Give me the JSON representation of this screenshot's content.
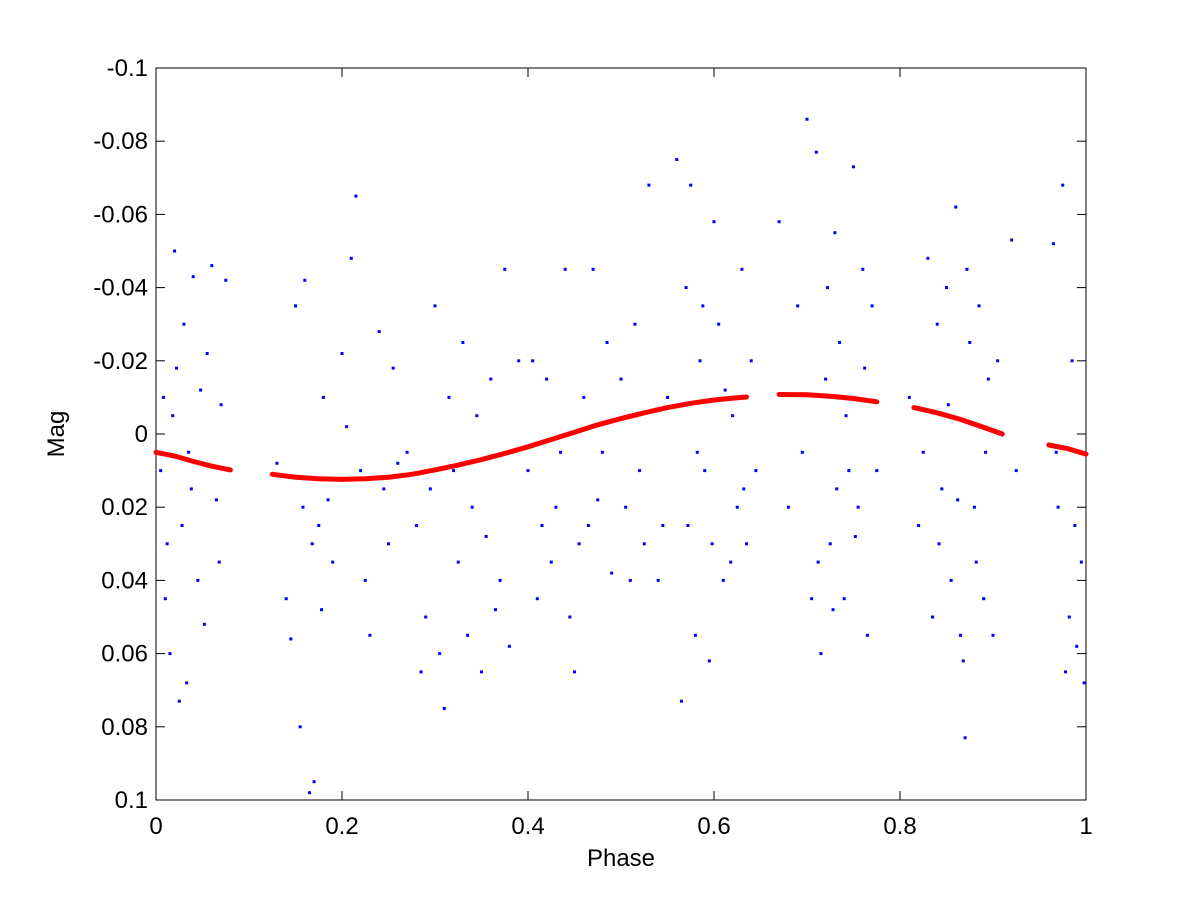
{
  "chart_data": {
    "type": "scatter",
    "title": "",
    "xlabel": "Phase",
    "ylabel": "Mag",
    "xlim": [
      0,
      1
    ],
    "ylim": [
      -0.1,
      0.1
    ],
    "y_reversed": true,
    "grid": false,
    "legend": "none",
    "x_ticks": [
      0,
      0.2,
      0.4,
      0.6,
      0.8,
      1
    ],
    "x_tick_labels": [
      "0",
      "0.2",
      "0.4",
      "0.6",
      "0.8",
      "1"
    ],
    "y_ticks": [
      -0.1,
      -0.08,
      -0.06,
      -0.04,
      -0.02,
      0,
      0.02,
      0.04,
      0.06,
      0.08,
      0.1
    ],
    "y_tick_labels": [
      "-0.1",
      "-0.08",
      "-0.06",
      "-0.04",
      "-0.02",
      "0",
      "0.02",
      "0.04",
      "0.06",
      "0.08",
      "0.1"
    ],
    "series": [
      {
        "kind": "points",
        "color": "#0000ff",
        "points": [
          [
            0.005,
            0.01
          ],
          [
            0.012,
            0.03
          ],
          [
            0.02,
            -0.05
          ],
          [
            0.025,
            0.073
          ],
          [
            0.03,
            -0.03
          ],
          [
            0.035,
            0.005
          ],
          [
            0.04,
            -0.043
          ],
          [
            0.045,
            0.04
          ],
          [
            0.055,
            -0.022
          ],
          [
            0.06,
            -0.046
          ],
          [
            0.065,
            0.018
          ],
          [
            0.07,
            -0.008
          ],
          [
            0.075,
            -0.042
          ],
          [
            0.008,
            -0.01
          ],
          [
            0.015,
            0.06
          ],
          [
            0.022,
            -0.018
          ],
          [
            0.028,
            0.025
          ],
          [
            0.033,
            0.068
          ],
          [
            0.048,
            -0.012
          ],
          [
            0.052,
            0.052
          ],
          [
            0.068,
            0.035
          ],
          [
            0.01,
            0.045
          ],
          [
            0.018,
            -0.005
          ],
          [
            0.038,
            0.015
          ],
          [
            0.13,
            0.008
          ],
          [
            0.14,
            0.045
          ],
          [
            0.145,
            0.056
          ],
          [
            0.15,
            -0.035
          ],
          [
            0.155,
            0.08
          ],
          [
            0.16,
            -0.042
          ],
          [
            0.165,
            0.098
          ],
          [
            0.17,
            0.095
          ],
          [
            0.175,
            0.025
          ],
          [
            0.18,
            -0.01
          ],
          [
            0.19,
            0.035
          ],
          [
            0.2,
            -0.022
          ],
          [
            0.21,
            -0.048
          ],
          [
            0.215,
            -0.065
          ],
          [
            0.22,
            0.01
          ],
          [
            0.23,
            0.055
          ],
          [
            0.24,
            -0.028
          ],
          [
            0.25,
            0.03
          ],
          [
            0.255,
            -0.018
          ],
          [
            0.26,
            0.008
          ],
          [
            0.152,
            0.012
          ],
          [
            0.168,
            0.03
          ],
          [
            0.185,
            0.018
          ],
          [
            0.205,
            -0.002
          ],
          [
            0.225,
            0.04
          ],
          [
            0.245,
            0.015
          ],
          [
            0.178,
            0.048
          ],
          [
            0.158,
            0.02
          ],
          [
            0.27,
            0.005
          ],
          [
            0.28,
            0.025
          ],
          [
            0.29,
            0.05
          ],
          [
            0.3,
            -0.035
          ],
          [
            0.305,
            0.06
          ],
          [
            0.31,
            0.075
          ],
          [
            0.32,
            0.01
          ],
          [
            0.33,
            -0.025
          ],
          [
            0.34,
            0.02
          ],
          [
            0.35,
            0.065
          ],
          [
            0.36,
            -0.015
          ],
          [
            0.37,
            0.04
          ],
          [
            0.375,
            -0.045
          ],
          [
            0.38,
            0.058
          ],
          [
            0.39,
            -0.02
          ],
          [
            0.285,
            0.065
          ],
          [
            0.295,
            0.015
          ],
          [
            0.315,
            -0.01
          ],
          [
            0.325,
            0.035
          ],
          [
            0.345,
            -0.005
          ],
          [
            0.355,
            0.028
          ],
          [
            0.365,
            0.048
          ],
          [
            0.335,
            0.055
          ],
          [
            0.4,
            0.01
          ],
          [
            0.41,
            0.045
          ],
          [
            0.42,
            -0.015
          ],
          [
            0.43,
            0.02
          ],
          [
            0.44,
            -0.045
          ],
          [
            0.445,
            0.05
          ],
          [
            0.45,
            0.065
          ],
          [
            0.455,
            0.03
          ],
          [
            0.46,
            -0.01
          ],
          [
            0.465,
            0.025
          ],
          [
            0.47,
            -0.045
          ],
          [
            0.48,
            0.005
          ],
          [
            0.49,
            0.038
          ],
          [
            0.5,
            -0.015
          ],
          [
            0.51,
            0.04
          ],
          [
            0.52,
            0.01
          ],
          [
            0.53,
            -0.068
          ],
          [
            0.54,
            0.04
          ],
          [
            0.55,
            -0.01
          ],
          [
            0.405,
            -0.02
          ],
          [
            0.415,
            0.025
          ],
          [
            0.425,
            0.035
          ],
          [
            0.435,
            0.005
          ],
          [
            0.475,
            0.018
          ],
          [
            0.485,
            -0.025
          ],
          [
            0.505,
            0.02
          ],
          [
            0.515,
            -0.03
          ],
          [
            0.525,
            0.03
          ],
          [
            0.545,
            0.025
          ],
          [
            0.56,
            -0.075
          ],
          [
            0.565,
            0.073
          ],
          [
            0.57,
            -0.04
          ],
          [
            0.575,
            -0.068
          ],
          [
            0.58,
            0.055
          ],
          [
            0.585,
            -0.02
          ],
          [
            0.59,
            0.01
          ],
          [
            0.595,
            0.062
          ],
          [
            0.6,
            -0.058
          ],
          [
            0.605,
            -0.03
          ],
          [
            0.61,
            0.04
          ],
          [
            0.62,
            -0.005
          ],
          [
            0.625,
            0.02
          ],
          [
            0.63,
            -0.045
          ],
          [
            0.635,
            0.03
          ],
          [
            0.64,
            -0.02
          ],
          [
            0.645,
            0.01
          ],
          [
            0.572,
            0.025
          ],
          [
            0.588,
            -0.035
          ],
          [
            0.598,
            0.03
          ],
          [
            0.612,
            -0.012
          ],
          [
            0.618,
            0.035
          ],
          [
            0.632,
            0.015
          ],
          [
            0.582,
            0.005
          ],
          [
            0.67,
            -0.058
          ],
          [
            0.68,
            0.02
          ],
          [
            0.69,
            -0.035
          ],
          [
            0.7,
            -0.086
          ],
          [
            0.705,
            0.045
          ],
          [
            0.71,
            -0.077
          ],
          [
            0.715,
            0.06
          ],
          [
            0.72,
            -0.015
          ],
          [
            0.725,
            0.03
          ],
          [
            0.73,
            -0.055
          ],
          [
            0.735,
            -0.025
          ],
          [
            0.74,
            0.045
          ],
          [
            0.745,
            0.01
          ],
          [
            0.75,
            -0.073
          ],
          [
            0.755,
            0.02
          ],
          [
            0.76,
            -0.045
          ],
          [
            0.765,
            0.055
          ],
          [
            0.77,
            -0.035
          ],
          [
            0.775,
            0.01
          ],
          [
            0.695,
            0.005
          ],
          [
            0.712,
            0.035
          ],
          [
            0.722,
            -0.04
          ],
          [
            0.732,
            0.015
          ],
          [
            0.742,
            -0.005
          ],
          [
            0.752,
            0.028
          ],
          [
            0.762,
            -0.018
          ],
          [
            0.728,
            0.048
          ],
          [
            0.81,
            -0.01
          ],
          [
            0.82,
            0.025
          ],
          [
            0.83,
            -0.048
          ],
          [
            0.835,
            0.05
          ],
          [
            0.84,
            -0.03
          ],
          [
            0.845,
            0.015
          ],
          [
            0.85,
            -0.04
          ],
          [
            0.855,
            0.04
          ],
          [
            0.86,
            -0.062
          ],
          [
            0.865,
            0.055
          ],
          [
            0.87,
            0.083
          ],
          [
            0.875,
            -0.025
          ],
          [
            0.88,
            0.02
          ],
          [
            0.885,
            -0.035
          ],
          [
            0.89,
            0.045
          ],
          [
            0.895,
            -0.015
          ],
          [
            0.9,
            0.055
          ],
          [
            0.905,
            -0.02
          ],
          [
            0.92,
            -0.053
          ],
          [
            0.925,
            0.01
          ],
          [
            0.825,
            0.005
          ],
          [
            0.842,
            0.03
          ],
          [
            0.852,
            -0.008
          ],
          [
            0.862,
            0.018
          ],
          [
            0.872,
            -0.045
          ],
          [
            0.882,
            0.035
          ],
          [
            0.892,
            0.005
          ],
          [
            0.868,
            0.062
          ],
          [
            0.965,
            -0.052
          ],
          [
            0.97,
            0.02
          ],
          [
            0.975,
            -0.068
          ],
          [
            0.978,
            0.065
          ],
          [
            0.982,
            0.05
          ],
          [
            0.985,
            -0.02
          ],
          [
            0.99,
            0.058
          ],
          [
            0.995,
            0.035
          ],
          [
            0.998,
            0.068
          ],
          [
            0.968,
            0.005
          ],
          [
            0.988,
            0.025
          ]
        ]
      },
      {
        "kind": "fit-curve",
        "color": "#ff0000",
        "segments": [
          [
            [
              0.0,
              0.005
            ],
            [
              0.02,
              0.006
            ],
            [
              0.04,
              0.0075
            ],
            [
              0.06,
              0.0088
            ],
            [
              0.08,
              0.0098
            ]
          ],
          [
            [
              0.125,
              0.011
            ],
            [
              0.15,
              0.0118
            ],
            [
              0.175,
              0.0122
            ],
            [
              0.2,
              0.0124
            ],
            [
              0.225,
              0.0122
            ],
            [
              0.25,
              0.0118
            ],
            [
              0.275,
              0.011
            ],
            [
              0.3,
              0.0098
            ],
            [
              0.325,
              0.0085
            ],
            [
              0.35,
              0.007
            ],
            [
              0.375,
              0.0053
            ],
            [
              0.4,
              0.0035
            ],
            [
              0.425,
              0.0015
            ],
            [
              0.45,
              -0.0005
            ],
            [
              0.475,
              -0.0025
            ],
            [
              0.5,
              -0.0042
            ],
            [
              0.525,
              -0.0058
            ],
            [
              0.55,
              -0.0072
            ],
            [
              0.575,
              -0.0084
            ],
            [
              0.6,
              -0.0093
            ],
            [
              0.625,
              -0.0099
            ],
            [
              0.635,
              -0.0101
            ]
          ],
          [
            [
              0.67,
              -0.0108
            ],
            [
              0.7,
              -0.0107
            ],
            [
              0.725,
              -0.0103
            ],
            [
              0.75,
              -0.0097
            ],
            [
              0.775,
              -0.0088
            ]
          ],
          [
            [
              0.815,
              -0.0072
            ],
            [
              0.84,
              -0.0058
            ],
            [
              0.865,
              -0.004
            ],
            [
              0.89,
              -0.0018
            ],
            [
              0.91,
              0.0
            ]
          ],
          [
            [
              0.96,
              0.003
            ],
            [
              0.98,
              0.004
            ],
            [
              1.0,
              0.0055
            ]
          ]
        ]
      }
    ]
  }
}
